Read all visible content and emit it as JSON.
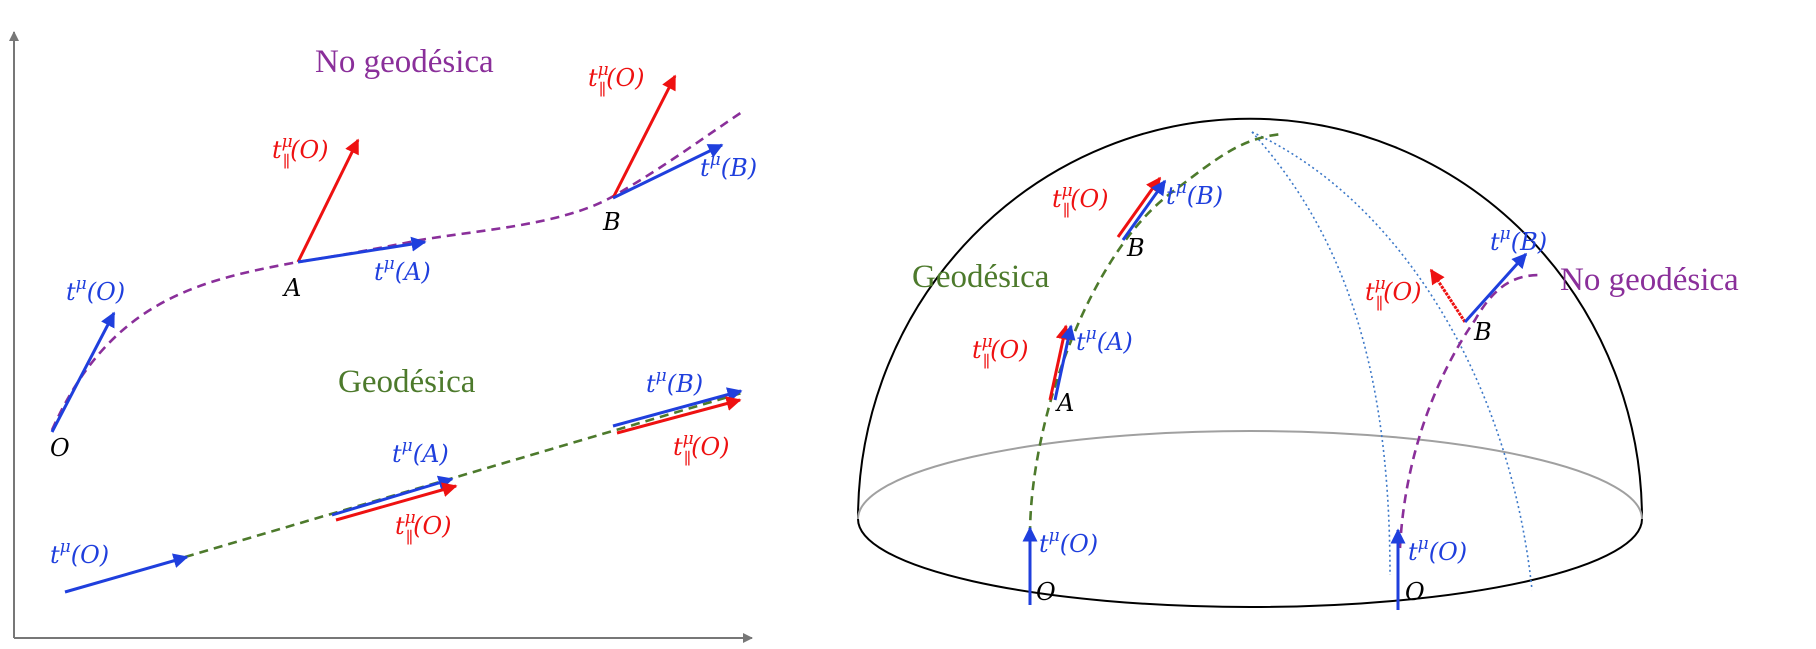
{
  "colors": {
    "blue": "#1f3fdd",
    "red": "#ee1111",
    "purple": "#8a2f9a",
    "green": "#4d7a2c",
    "black": "#000000",
    "gray": "#9a9a9a",
    "meridian": "#3c78c8"
  },
  "left_panel": {
    "title_non_geodesic": "No geodésica",
    "title_geodesic": "Geodésica",
    "non_geodesic_path": {
      "point_o": "O",
      "point_a": "A",
      "point_b": "B",
      "vec_o": {
        "base": "t",
        "sup": "μ",
        "arg": "(O)"
      },
      "vec_a": {
        "base": "t",
        "sup": "μ",
        "arg": "(A)"
      },
      "vec_b": {
        "base": "t",
        "sup": "μ",
        "arg": "(B)"
      },
      "par_a": {
        "base": "t",
        "sup": "μ",
        "sub": "∥",
        "arg": "(O)"
      },
      "par_b": {
        "base": "t",
        "sup": "μ",
        "sub": "∥",
        "arg": "(O)"
      }
    },
    "geodesic_path": {
      "vec_o": {
        "base": "t",
        "sup": "μ",
        "arg": "(O)"
      },
      "vec_a": {
        "base": "t",
        "sup": "μ",
        "arg": "(A)"
      },
      "vec_b": {
        "base": "t",
        "sup": "μ",
        "arg": "(B)"
      },
      "par_a": {
        "base": "t",
        "sup": "μ",
        "sub": "∥",
        "arg": "(O)"
      },
      "par_b": {
        "base": "t",
        "sup": "μ",
        "sub": "∥",
        "arg": "(O)"
      }
    }
  },
  "right_panel": {
    "title_geodesic": "Geodésica",
    "title_non_geodesic": "No geodésica",
    "geodesic": {
      "point_o": "O",
      "point_a": "A",
      "point_b": "B",
      "vec_o": {
        "base": "t",
        "sup": "μ",
        "arg": "(O)"
      },
      "vec_a": {
        "base": "t",
        "sup": "μ",
        "arg": "(A)"
      },
      "vec_b": {
        "base": "t",
        "sup": "μ",
        "arg": "(B)"
      },
      "par_a": {
        "base": "t",
        "sup": "μ",
        "sub": "∥",
        "arg": "(O)"
      },
      "par_b": {
        "base": "t",
        "sup": "μ",
        "sub": "∥",
        "arg": "(O)"
      }
    },
    "non_geodesic": {
      "point_o": "O",
      "point_b": "B",
      "vec_o": {
        "base": "t",
        "sup": "μ",
        "arg": "(O)"
      },
      "vec_b": {
        "base": "t",
        "sup": "μ",
        "arg": "(B)"
      },
      "par_b": {
        "base": "t",
        "sup": "μ",
        "sub": "∥",
        "arg": "(O)"
      }
    }
  }
}
